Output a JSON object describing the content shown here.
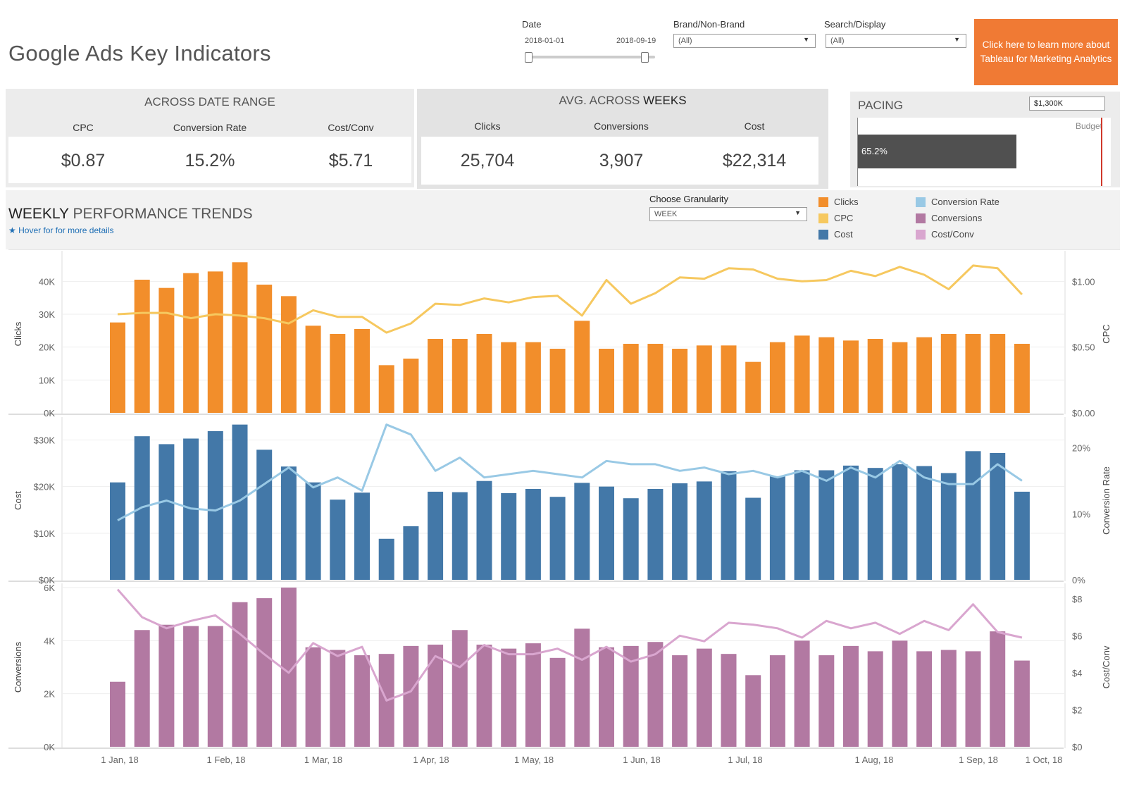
{
  "header": {
    "title": "Google Ads Key Indicators",
    "cta_text": "Click here to learn more about Tableau for Marketing Analytics"
  },
  "filters": {
    "date_label": "Date",
    "date_start": "2018-01-01",
    "date_end": "2018-09-19",
    "brand_label": "Brand/Non-Brand",
    "brand_value": "(All)",
    "search_label": "Search/Display",
    "search_value": "(All)"
  },
  "kpis": {
    "range_header": "ACROSS DATE RANGE",
    "range": [
      {
        "label": "CPC",
        "value": "$0.87"
      },
      {
        "label": "Conversion Rate",
        "value": "15.2%"
      },
      {
        "label": "Cost/Conv",
        "value": "$5.71"
      }
    ],
    "weeks_header_prefix": "AVG. ACROSS",
    "weeks_header_em": "WEEKS",
    "weeks": [
      {
        "label": "Clicks",
        "value": "25,704"
      },
      {
        "label": "Conversions",
        "value": "3,907"
      },
      {
        "label": "Cost",
        "value": "$22,314"
      }
    ]
  },
  "pacing": {
    "title": "PACING",
    "budget_input": "$1,300K",
    "budget_label": "Budget",
    "percent_label": "65.2%",
    "percent": 65.2
  },
  "trends": {
    "title_em": "WEEKLY",
    "title_rest": "PERFORMANCE TRENDS",
    "hover_text": "Hover for for more details",
    "granularity_label": "Choose Granularity",
    "granularity_value": "WEEK",
    "legend": [
      {
        "name": "Clicks",
        "color": "#f28e2b"
      },
      {
        "name": "CPC",
        "color": "#f6c85f"
      },
      {
        "name": "Cost",
        "color": "#4378a8"
      },
      {
        "name": "Conversion Rate",
        "color": "#99c9e5"
      },
      {
        "name": "Conversions",
        "color": "#b279a2"
      },
      {
        "name": "Cost/Conv",
        "color": "#d9a6cf"
      }
    ]
  },
  "chart_data": {
    "type": "bar",
    "title": "Weekly Performance Trends",
    "x_ticks": [
      "1 Jan, 18",
      "1 Feb, 18",
      "1 Mar, 18",
      "1 Apr, 18",
      "1 May, 18",
      "1 Jun, 18",
      "1 Jul, 18",
      "1 Aug, 18",
      "1 Sep, 18",
      "1 Oct, 18"
    ],
    "weeks": 38,
    "panels": [
      {
        "bar": {
          "name": "Clicks",
          "color": "#f28e2b",
          "ylabel": "Clicks",
          "ylim": [
            0,
            48000
          ],
          "ticks": [
            0,
            10000,
            20000,
            30000,
            40000
          ],
          "tick_labels": [
            "0K",
            "10K",
            "20K",
            "30K",
            "40K"
          ],
          "values": [
            27500,
            40500,
            38000,
            42500,
            43000,
            45800,
            39000,
            35500,
            26500,
            24000,
            25500,
            14500,
            16500,
            22500,
            22500,
            24000,
            21500,
            21500,
            19500,
            28000,
            19500,
            21000,
            21000,
            19500,
            20500,
            20500,
            15500,
            21500,
            23500,
            23000,
            22000,
            22500,
            21500,
            23000,
            24000,
            24000,
            24000,
            21000
          ]
        },
        "line": {
          "name": "CPC",
          "color": "#f6c85f",
          "ylabel": "CPC",
          "ylim": [
            0,
            1.2
          ],
          "ticks": [
            0,
            0.5,
            1.0
          ],
          "tick_labels": [
            "$0.00",
            "$0.50",
            "$1.00"
          ],
          "values": [
            0.75,
            0.76,
            0.76,
            0.72,
            0.75,
            0.74,
            0.72,
            0.68,
            0.78,
            0.73,
            0.73,
            0.61,
            0.68,
            0.83,
            0.82,
            0.87,
            0.84,
            0.88,
            0.89,
            0.74,
            1.01,
            0.83,
            0.91,
            1.03,
            1.02,
            1.1,
            1.09,
            1.02,
            1.0,
            1.01,
            1.08,
            1.04,
            1.11,
            1.05,
            0.94,
            1.12,
            1.1,
            0.9
          ]
        }
      },
      {
        "bar": {
          "name": "Cost",
          "color": "#4378a8",
          "ylabel": "Cost",
          "ylim": [
            0,
            34000
          ],
          "ticks": [
            0,
            10000,
            20000,
            30000
          ],
          "tick_labels": [
            "$0K",
            "$10K",
            "$20K",
            "$30K"
          ],
          "values": [
            20900,
            30800,
            29100,
            30300,
            31900,
            33300,
            27900,
            24300,
            20900,
            17200,
            18700,
            8800,
            11500,
            18900,
            18800,
            21200,
            18600,
            19500,
            17800,
            20800,
            20000,
            17500,
            19500,
            20700,
            21100,
            23300,
            17600,
            22200,
            23500,
            23500,
            24500,
            24000,
            24800,
            24400,
            22900,
            27600,
            27200,
            18900
          ]
        },
        "line": {
          "name": "Conversion Rate",
          "color": "#99c9e5",
          "ylabel": "Conversion Rate",
          "ylim": [
            0,
            24
          ],
          "ticks": [
            0,
            10,
            20
          ],
          "tick_labels": [
            "0%",
            "10%",
            "20%"
          ],
          "values": [
            9.0,
            11.0,
            12.0,
            10.8,
            10.5,
            12.0,
            14.5,
            17.0,
            14.0,
            15.5,
            13.5,
            23.5,
            22.0,
            16.5,
            18.5,
            15.5,
            16.0,
            16.5,
            16.0,
            15.5,
            18.0,
            17.5,
            17.5,
            16.5,
            17.0,
            16.0,
            16.5,
            15.5,
            16.5,
            15.0,
            17.0,
            15.5,
            18.0,
            15.5,
            14.5,
            14.5,
            17.5,
            15.0
          ]
        }
      },
      {
        "bar": {
          "name": "Conversions",
          "color": "#b279a2",
          "ylabel": "Conversions",
          "ylim": [
            0,
            6000
          ],
          "ticks": [
            0,
            2000,
            4000,
            6000
          ],
          "tick_labels": [
            "0K",
            "2K",
            "4K",
            "6K"
          ],
          "values": [
            2450,
            4400,
            4600,
            4550,
            4550,
            5450,
            5600,
            6000,
            3750,
            3650,
            3450,
            3500,
            3800,
            3850,
            4400,
            3850,
            3700,
            3900,
            3350,
            4450,
            3750,
            3800,
            3950,
            3450,
            3700,
            3500,
            2700,
            3450,
            4000,
            3450,
            3800,
            3600,
            4000,
            3600,
            3650,
            3600,
            4350,
            3250
          ]
        },
        "line": {
          "name": "Cost/Conv",
          "color": "#d9a6cf",
          "ylabel": "Cost/Conv",
          "ylim": [
            0,
            8.6
          ],
          "ticks": [
            0,
            2,
            4,
            6,
            8
          ],
          "tick_labels": [
            "$0",
            "$2",
            "$4",
            "$6",
            "$8"
          ],
          "values": [
            8.5,
            7.0,
            6.4,
            6.8,
            7.1,
            6.1,
            5.0,
            4.0,
            5.6,
            4.9,
            5.4,
            2.5,
            3.0,
            4.9,
            4.3,
            5.5,
            5.0,
            5.0,
            5.3,
            4.7,
            5.4,
            4.6,
            5.0,
            6.0,
            5.7,
            6.7,
            6.6,
            6.4,
            5.9,
            6.8,
            6.4,
            6.7,
            6.1,
            6.8,
            6.3,
            7.7,
            6.2,
            5.9
          ]
        }
      }
    ]
  }
}
